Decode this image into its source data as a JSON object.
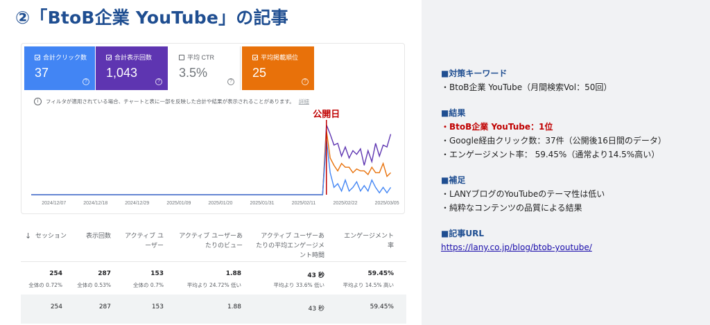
{
  "title": "②「BtoB企業 YouTube」の記事",
  "metrics": [
    {
      "label": "合計クリック数",
      "value": "37",
      "checked": true,
      "color": "#4285f4"
    },
    {
      "label": "合計表示回数",
      "value": "1,043",
      "checked": true,
      "color": "#5e35b1"
    },
    {
      "label": "平均 CTR",
      "value": "3.5%",
      "checked": false,
      "color": "#ffffff"
    },
    {
      "label": "平均掲載順位",
      "value": "25",
      "checked": true,
      "color": "#e8710a"
    }
  ],
  "notice": {
    "text": "フィルタが適用されている場合、チャートと表に一部を反映した合計や結果が表示されることがあります。",
    "link": "詳細"
  },
  "chart_data": {
    "type": "line",
    "annotation": "公開日",
    "x_ticks": [
      "2024/12/07",
      "2024/12/18",
      "2024/12/29",
      "2025/01/09",
      "2025/01/20",
      "2025/01/31",
      "2025/02/11",
      "2025/02/22",
      "2025/03/05"
    ],
    "x_range": [
      "2024/12/01",
      "2025/03/07"
    ],
    "publish_date": "2025/02/17",
    "grid": false,
    "series": [
      {
        "color": "#5e35b1",
        "values": [
          [
            0,
            0
          ],
          [
            77,
            0
          ],
          [
            78,
            38
          ],
          [
            79,
            33
          ],
          [
            80,
            27
          ],
          [
            81,
            28
          ],
          [
            82,
            21
          ],
          [
            83,
            26
          ],
          [
            84,
            20
          ],
          [
            85,
            24
          ],
          [
            86,
            22
          ],
          [
            87,
            25
          ],
          [
            88,
            16
          ],
          [
            89,
            24
          ],
          [
            90,
            18
          ],
          [
            91,
            28
          ],
          [
            92,
            21
          ],
          [
            93,
            27
          ],
          [
            94,
            26
          ],
          [
            95,
            33
          ]
        ]
      },
      {
        "color": "#e8710a",
        "values": [
          [
            0,
            0
          ],
          [
            77,
            0
          ],
          [
            78,
            35
          ],
          [
            79,
            20
          ],
          [
            80,
            16
          ],
          [
            81,
            13
          ],
          [
            82,
            17
          ],
          [
            83,
            15
          ],
          [
            84,
            15
          ],
          [
            85,
            12
          ],
          [
            86,
            14
          ],
          [
            87,
            13
          ],
          [
            88,
            13
          ],
          [
            89,
            11
          ],
          [
            90,
            15
          ],
          [
            91,
            12
          ],
          [
            92,
            12
          ],
          [
            93,
            17
          ],
          [
            94,
            10
          ],
          [
            95,
            12
          ]
        ]
      },
      {
        "color": "#4285f4",
        "values": [
          [
            0,
            0
          ],
          [
            77,
            0
          ],
          [
            78,
            30
          ],
          [
            79,
            12
          ],
          [
            80,
            4
          ],
          [
            81,
            6
          ],
          [
            82,
            2
          ],
          [
            83,
            8
          ],
          [
            84,
            2
          ],
          [
            85,
            4
          ],
          [
            86,
            7
          ],
          [
            87,
            2
          ],
          [
            88,
            5
          ],
          [
            89,
            2
          ],
          [
            90,
            8
          ],
          [
            91,
            4
          ],
          [
            92,
            1
          ],
          [
            93,
            4
          ],
          [
            94,
            1
          ],
          [
            95,
            4
          ]
        ]
      }
    ]
  },
  "table": {
    "headers": [
      "セッション",
      "表示回数",
      "アクティブ ユーザー",
      "アクティブ ユーザーあたりのビュー",
      "アクティブ ユーザーあたりの平均エンゲージメント時間",
      "エンゲージメント率"
    ],
    "sort_icon": "↓",
    "totals": [
      "254",
      "287",
      "153",
      "1.88",
      "43 秒",
      "59.45%"
    ],
    "totals_sub": [
      "全体の 0.72%",
      "全体の 0.53%",
      "全体の 0.7%",
      "平均より 24.72% 低い",
      "平均より 33.6% 低い",
      "平均より 14.5% 高い"
    ],
    "row": [
      "254",
      "287",
      "153",
      "1.88",
      "43 秒",
      "59.45%"
    ]
  },
  "side": {
    "keyword_heading": "■対策キーワード",
    "keyword_line": "・BtoB企業 YouTube（月間検索Vol：50回）",
    "result_heading": "■結果",
    "result_rank": "・BtoB企業 YouTube：1位",
    "result_clicks": "・Google経由クリック数：37件（公開後16日間のデータ）",
    "result_engagement": "・エンゲージメント率： 59.45%（通常より14.5%高い）",
    "note_heading": "■補足",
    "note_1": "・LANYブログのYouTubeのテーマ性は低い",
    "note_2": "・純粋なコンテンツの品質による結果",
    "url_heading": "■記事URL",
    "url": "https://lany.co.jp/blog/btob-youtube/"
  }
}
